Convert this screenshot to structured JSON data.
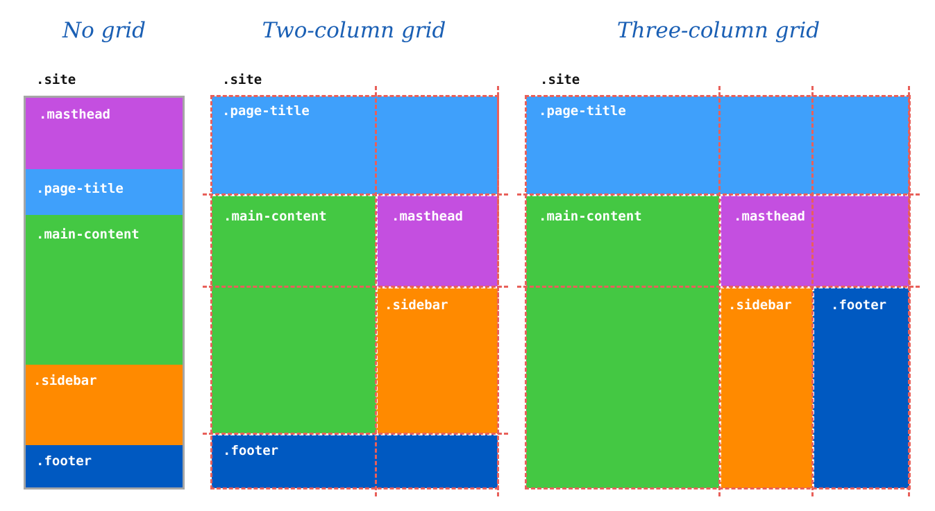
{
  "headings": {
    "no_grid": "No grid",
    "two_column": "Two-column grid",
    "three_column": "Three-column grid"
  },
  "site_label": ".site",
  "areas": {
    "masthead": ".masthead",
    "page_title": ".page-title",
    "main_content": ".main-content",
    "sidebar": ".sidebar",
    "footer": ".footer"
  },
  "colors": {
    "heading": "#1a5fb4",
    "masthead": "#c44fe0",
    "page_title": "#3fa0fb",
    "main_content": "#44c843",
    "sidebar": "#ff8a00",
    "footer": "#0059c1",
    "grid_line": "#e8605a",
    "plain_border": "#a6a6a6"
  }
}
